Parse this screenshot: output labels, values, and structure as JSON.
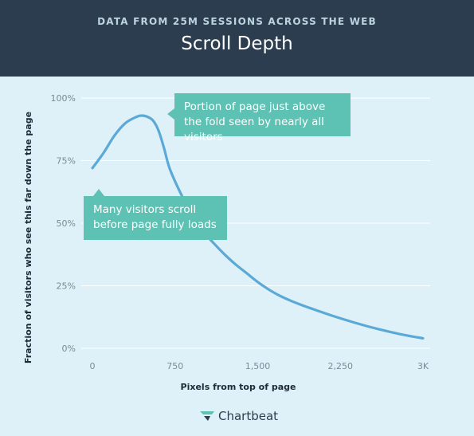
{
  "header": {
    "kicker": "DATA FROM 25M SESSIONS ACROSS THE WEB",
    "title": "Scroll Depth"
  },
  "chart_data": {
    "type": "line",
    "title": "Scroll Depth",
    "subtitle": "DATA FROM 25M SESSIONS ACROSS THE WEB",
    "xlabel": "Pixels from top of page",
    "ylabel": "Fraction of visitors who see this far down the page",
    "xlim": [
      0,
      3000
    ],
    "ylim": [
      0,
      100
    ],
    "x_ticks": [
      0,
      750,
      1500,
      2250,
      3000
    ],
    "x_tick_labels": [
      "0",
      "750",
      "1,500",
      "2,250",
      "3K"
    ],
    "y_ticks": [
      0,
      25,
      50,
      75,
      100
    ],
    "y_tick_labels": [
      "0%",
      "25%",
      "50%",
      "75%",
      "100%"
    ],
    "grid": true,
    "series": [
      {
        "x": [
          0,
          100,
          200,
          300,
          400,
          450,
          500,
          550,
          600,
          650,
          700,
          800,
          900,
          1000,
          1100,
          1200,
          1300,
          1400,
          1500,
          1600,
          1700,
          1800,
          1900,
          2000,
          2200,
          2400,
          2600,
          2800,
          3000
        ],
        "values": [
          72,
          78,
          85,
          90,
          92.5,
          93,
          92.5,
          91,
          87,
          80,
          72,
          62,
          54,
          47,
          42,
          37.5,
          33.5,
          30,
          26.5,
          23.5,
          21,
          19,
          17.3,
          15.7,
          12.7,
          10,
          7.6,
          5.6,
          4
        ]
      }
    ],
    "annotations": [
      "Portion of page just above the fold seen by nearly all visitors",
      "Many visitors scroll before page fully loads"
    ]
  },
  "colors": {
    "header_bg": "#2c3d4f",
    "plot_bg": "#dff1f8",
    "line": "#5aa9d6",
    "callout": "#5dc1b3"
  },
  "logo": {
    "text": "Chartbeat",
    "icon": "chartbeat-logo-icon"
  }
}
